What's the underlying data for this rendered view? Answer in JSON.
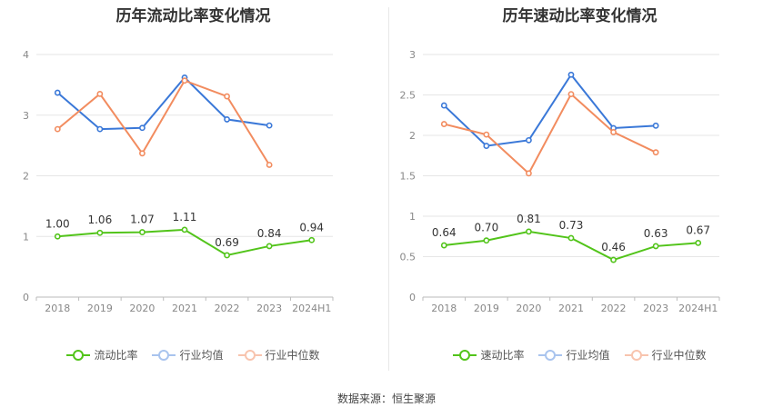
{
  "colors": {
    "company": "#52c41a",
    "industry_avg": "#3a78d8",
    "industry_median": "#f28c5f",
    "grid": "#e6e6e6",
    "axis_text": "#888888"
  },
  "source": "数据来源：恒生聚源",
  "chart_data": [
    {
      "type": "line",
      "title": "历年流动比率变化情况",
      "categories": [
        "2018",
        "2019",
        "2020",
        "2021",
        "2022",
        "2023",
        "2024H1"
      ],
      "ylim": [
        0,
        4
      ],
      "yticks": [
        "0",
        "1",
        "2",
        "3",
        "4"
      ],
      "series": [
        {
          "name": "流动比率",
          "key": "company",
          "values": [
            1.0,
            1.06,
            1.07,
            1.11,
            0.69,
            0.84,
            0.94
          ],
          "labels": [
            "1.00",
            "1.06",
            "1.07",
            "1.11",
            "0.69",
            "0.84",
            "0.94"
          ]
        },
        {
          "name": "行业均值",
          "key": "industry_avg",
          "values": [
            3.37,
            2.77,
            2.79,
            3.62,
            2.93,
            2.83,
            null
          ]
        },
        {
          "name": "行业中位数",
          "key": "industry_median",
          "values": [
            2.77,
            3.35,
            2.37,
            3.57,
            3.31,
            2.18,
            null
          ]
        }
      ]
    },
    {
      "type": "line",
      "title": "历年速动比率变化情况",
      "categories": [
        "2018",
        "2019",
        "2020",
        "2021",
        "2022",
        "2023",
        "2024H1"
      ],
      "ylim": [
        0,
        3
      ],
      "yticks": [
        "0",
        "0.5",
        "1",
        "1.5",
        "2",
        "2.5",
        "3"
      ],
      "series": [
        {
          "name": "速动比率",
          "key": "company",
          "values": [
            0.64,
            0.7,
            0.81,
            0.73,
            0.46,
            0.63,
            0.67
          ],
          "labels": [
            "0.64",
            "0.70",
            "0.81",
            "0.73",
            "0.46",
            "0.63",
            "0.67"
          ]
        },
        {
          "name": "行业均值",
          "key": "industry_avg",
          "values": [
            2.37,
            1.87,
            1.94,
            2.75,
            2.09,
            2.12,
            null
          ]
        },
        {
          "name": "行业中位数",
          "key": "industry_median",
          "values": [
            2.14,
            2.01,
            1.53,
            2.51,
            2.04,
            1.79,
            null
          ]
        }
      ]
    }
  ]
}
